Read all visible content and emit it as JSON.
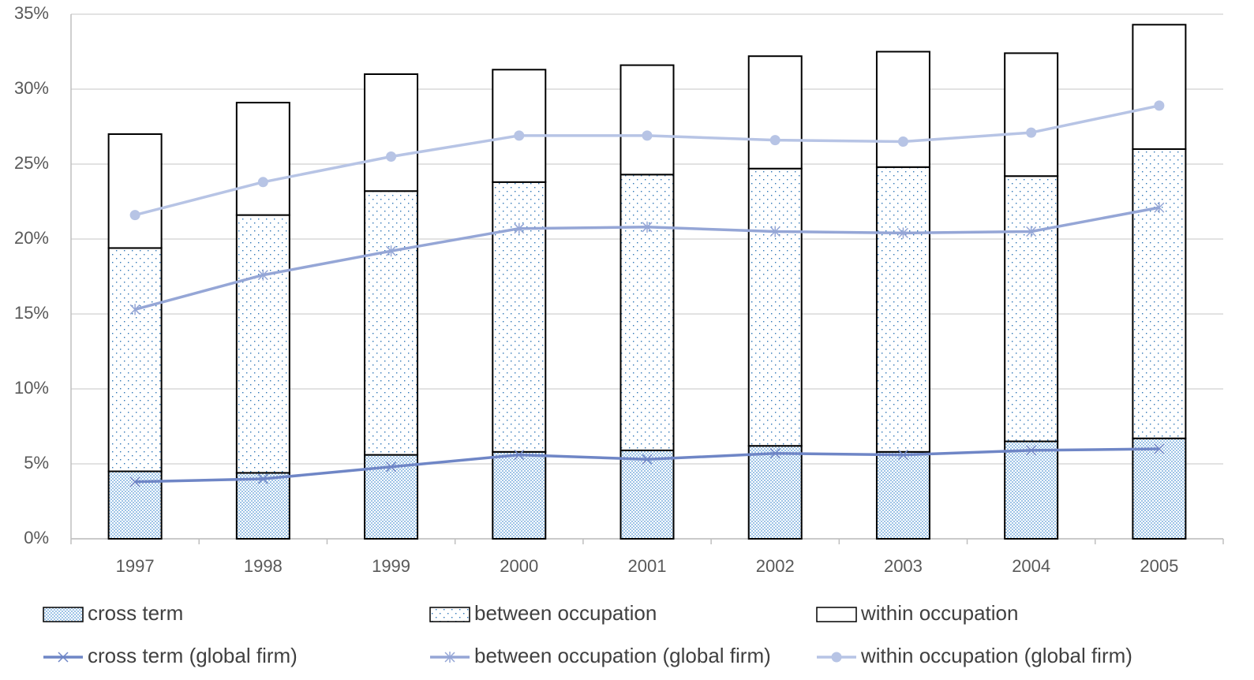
{
  "chart_data": {
    "type": "bar",
    "categories": [
      "1997",
      "1998",
      "1999",
      "2000",
      "2001",
      "2002",
      "2003",
      "2004",
      "2005"
    ],
    "ylim": [
      0,
      35
    ],
    "yticks": [
      {
        "value": 0,
        "label": "0%"
      },
      {
        "value": 5,
        "label": "5%"
      },
      {
        "value": 10,
        "label": "10%"
      },
      {
        "value": 15,
        "label": "15%"
      },
      {
        "value": 20,
        "label": "20%"
      },
      {
        "value": 25,
        "label": "25%"
      },
      {
        "value": 30,
        "label": "30%"
      },
      {
        "value": 35,
        "label": "35%"
      }
    ],
    "grid": true,
    "legend": "bottom",
    "series": [
      {
        "name": "cross term",
        "type": "bar",
        "pattern": "checker",
        "color": "#5b9bd5",
        "values": [
          4.5,
          4.4,
          5.6,
          5.8,
          5.9,
          6.2,
          5.8,
          6.5,
          6.7
        ]
      },
      {
        "name": "between occupation",
        "type": "bar",
        "pattern": "dots",
        "color": "#2e75b6",
        "values": [
          14.9,
          17.2,
          17.6,
          18.0,
          18.4,
          18.5,
          19.0,
          17.7,
          19.3
        ]
      },
      {
        "name": "within occupation",
        "type": "bar",
        "pattern": "none",
        "color": "#ffffff",
        "values": [
          7.6,
          7.5,
          7.8,
          7.5,
          7.3,
          7.5,
          7.7,
          8.2,
          8.3
        ]
      },
      {
        "name": "cross term (global firm)",
        "type": "line",
        "marker": "x",
        "color": "#6f86c6",
        "values": [
          3.8,
          4.0,
          4.8,
          5.6,
          5.3,
          5.7,
          5.6,
          5.9,
          6.0
        ]
      },
      {
        "name": "between occupation (global firm)",
        "type": "line",
        "marker": "asterisk",
        "color": "#95a6d6",
        "values": [
          15.3,
          17.6,
          19.2,
          20.7,
          20.8,
          20.5,
          20.4,
          20.5,
          22.1
        ]
      },
      {
        "name": "within occupation (global firm)",
        "type": "line",
        "marker": "circle",
        "color": "#b7c4e5",
        "values": [
          21.6,
          23.8,
          25.5,
          26.9,
          26.9,
          26.6,
          26.5,
          27.1,
          28.9
        ]
      }
    ]
  }
}
